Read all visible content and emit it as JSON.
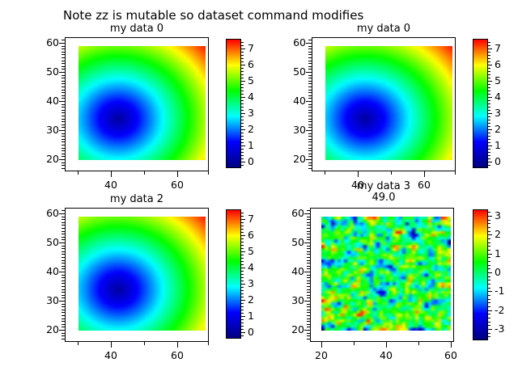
{
  "figure": {
    "title": "Note zz is mutable so dataset command modifies",
    "background": "#ffffff",
    "text_color": "#000000"
  },
  "colormap": {
    "name": "jet",
    "stops": [
      "#000080",
      "#0000ff",
      "#00ffff",
      "#00ff00",
      "#ffff00",
      "#ff0000"
    ]
  },
  "chart_data": [
    {
      "type": "heatmap",
      "title": "my data 0",
      "x_ticks": [
        40,
        60
      ],
      "x_minor_ticks": [
        30,
        50,
        70
      ],
      "y_ticks": [
        20,
        30,
        40,
        50,
        60
      ],
      "y_minor_range": [
        16,
        61
      ],
      "y_minor_step": 1,
      "colorbar": {
        "ticks": [
          7,
          6,
          5,
          4,
          3,
          2,
          1,
          0
        ],
        "range": [
          -0.4,
          7.6
        ],
        "minor_step": 0.2
      },
      "image": {
        "kind": "radial",
        "x_range": [
          30,
          69
        ],
        "y_range": [
          20,
          59
        ],
        "grid": [
          40,
          40
        ],
        "min_at": [
          42,
          34
        ],
        "z_scale": 0.2,
        "z_min": 0,
        "z_max": 7.4,
        "description": "z = 0.2*sqrt((x-42)^2+(y-34)^2), blue minimum blob at (42,34), red maximum at top-right corner"
      }
    },
    {
      "type": "heatmap",
      "title": "my data 0",
      "x_ticks": [
        40,
        60
      ],
      "x_minor_ticks": [
        30,
        50,
        70
      ],
      "y_ticks": [
        20,
        30,
        40,
        50,
        60
      ],
      "y_minor_range": [
        16,
        61
      ],
      "y_minor_step": 1,
      "colorbar": {
        "ticks": [
          7,
          6,
          5,
          4,
          3,
          2,
          1,
          0
        ],
        "range": [
          -0.4,
          7.6
        ],
        "minor_step": 0.2
      },
      "image": {
        "kind": "radial",
        "x_range": [
          30,
          69
        ],
        "y_range": [
          20,
          59
        ],
        "grid": [
          40,
          40
        ],
        "min_at": [
          42,
          34
        ],
        "z_scale": 0.2,
        "z_min": 0,
        "z_max": 7.4,
        "description": "z = 0.2*sqrt((x-42)^2+(y-34)^2), blue minimum blob at (42,34), red maximum at top-right corner"
      }
    },
    {
      "type": "heatmap",
      "title": "my data 2",
      "x_ticks": [
        40,
        60
      ],
      "x_minor_ticks": [
        30,
        50,
        70
      ],
      "y_ticks": [
        20,
        30,
        40,
        50,
        60
      ],
      "y_minor_range": [
        16,
        61
      ],
      "y_minor_step": 1,
      "colorbar": {
        "ticks": [
          7,
          6,
          5,
          4,
          3,
          2,
          1,
          0
        ],
        "range": [
          -0.4,
          7.6
        ],
        "minor_step": 0.2
      },
      "image": {
        "kind": "radial",
        "x_range": [
          30,
          69
        ],
        "y_range": [
          20,
          59
        ],
        "grid": [
          40,
          40
        ],
        "min_at": [
          42,
          34
        ],
        "z_scale": 0.2,
        "z_min": 0,
        "z_max": 7.4,
        "description": "z = 0.2*sqrt((x-42)^2+(y-34)^2), blue minimum blob at (42,34), red maximum at top-right corner"
      }
    },
    {
      "type": "heatmap",
      "title": "my data 3",
      "subtitle": "49.0",
      "x_ticks": [
        20,
        40,
        60
      ],
      "x_minor_ticks": [
        30,
        50
      ],
      "y_ticks": [
        20,
        30,
        40,
        50,
        60
      ],
      "y_minor_range": [
        16,
        61
      ],
      "y_minor_step": 1,
      "colorbar": {
        "ticks": [
          3,
          2,
          1,
          0,
          -1,
          -2,
          -3
        ],
        "range": [
          -3.65,
          3.35
        ],
        "minor_step": 0.2
      },
      "image": {
        "kind": "noise",
        "x_range": [
          20,
          59
        ],
        "y_range": [
          20,
          59
        ],
        "grid": [
          40,
          40
        ],
        "mean": 0.3,
        "sigma": 1.05,
        "clip": [
          -3.6,
          3.3
        ],
        "seed": 20,
        "description": "random gaussian noise field, green background with yellow/red maxima speckles and cyan/blue minima dots"
      }
    }
  ]
}
